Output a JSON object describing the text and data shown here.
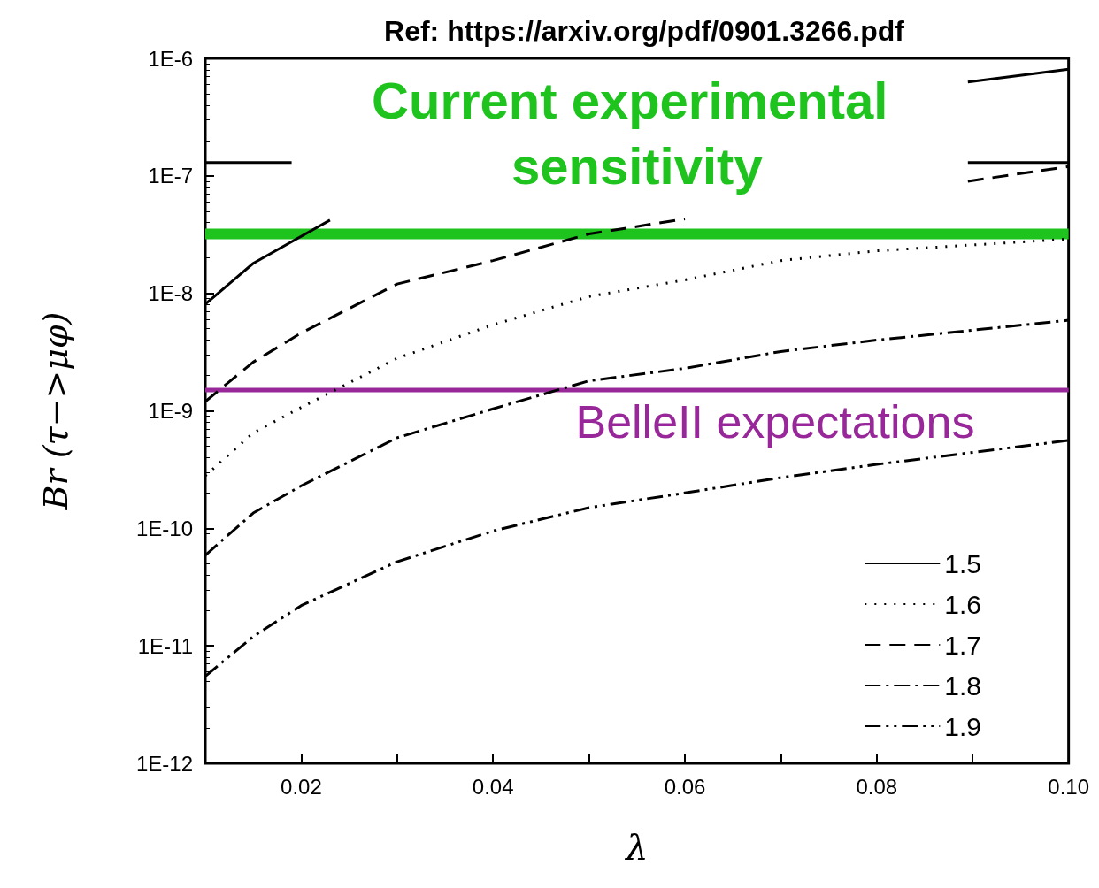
{
  "chart_data": {
    "type": "line",
    "title": "Ref: https://arxiv.org/pdf/0901.3266.pdf",
    "xlabel": "λ",
    "ylabel": "Br (τ−>μφ)",
    "x": [
      0.01,
      0.015,
      0.02,
      0.03,
      0.04,
      0.05,
      0.06,
      0.07,
      0.08,
      0.1
    ],
    "series": [
      {
        "name": "1.5",
        "color": "#000000",
        "line_style": "solid",
        "x": [
          0.01,
          0.015,
          0.023,
          0.05,
          0.0895,
          0.1
        ],
        "values": [
          8.1e-09,
          1.8e-08,
          4.2e-08,
          null,
          6.3e-07,
          8.1e-07
        ]
      },
      {
        "name": "1.6",
        "color": "#000000",
        "line_style": "dotted",
        "values": [
          2.8e-10,
          6.5e-10,
          1.07e-09,
          2.8e-09,
          5.4e-09,
          9.4e-09,
          1.3e-08,
          1.9e-08,
          2.3e-08,
          2.9e-08
        ]
      },
      {
        "name": "1.7",
        "color": "#000000",
        "line_style": "dashed",
        "x": [
          0.01,
          0.015,
          0.02,
          0.03,
          0.04,
          0.05,
          0.06,
          0.07,
          0.0895,
          0.1
        ],
        "values": [
          1.2e-09,
          2.6e-09,
          4.6e-09,
          1.2e-08,
          1.9e-08,
          3.2e-08,
          4.3e-08,
          null,
          9e-08,
          1.2e-07
        ]
      },
      {
        "name": "1.8",
        "color": "#000000",
        "line_style": "dashdot",
        "values": [
          5.9e-11,
          1.35e-10,
          2.3e-10,
          5.9e-10,
          1.04e-09,
          1.8e-09,
          2.3e-09,
          3.2e-09,
          4e-09,
          5.9e-09
        ]
      },
      {
        "name": "1.9",
        "color": "#000000",
        "line_style": "dashdotdot",
        "values": [
          5.5e-12,
          1.2e-11,
          2.2e-11,
          5.2e-11,
          9.5e-11,
          1.5e-10,
          2e-10,
          2.7e-10,
          3.5e-10,
          5.6e-10
        ]
      },
      {
        "color": "#000000",
        "line_style": "solid",
        "x": [
          0.01,
          0.019,
          0.05,
          0.0895,
          0.1
        ],
        "values": [
          1.3e-07,
          1.3e-07,
          null,
          1.3e-07,
          1.3e-07
        ]
      }
    ],
    "ref_lines": [
      {
        "axis": "y",
        "value": 3.2e-08,
        "label": "Current experimental sensitivity",
        "color": "#1ec31e"
      },
      {
        "axis": "y",
        "value": 1.5e-09,
        "label": "BelleII expectations",
        "color": "#98289a"
      }
    ],
    "log": "y",
    "xlim": [
      0.01,
      0.1
    ],
    "ylim": [
      1e-12,
      1e-06
    ],
    "xticks": [
      {
        "value": 0.01,
        "label": null
      },
      0.02,
      {
        "value": 0.03,
        "label": null
      },
      0.04,
      {
        "value": 0.05,
        "label": null
      },
      0.06,
      {
        "value": 0.07,
        "label": null
      },
      0.08,
      {
        "value": 0.09,
        "label": null
      },
      {
        "value": 0.1,
        "label": "0.10"
      }
    ],
    "yticks": [
      {
        "value": 1e-12,
        "label": "1E-12"
      },
      {
        "value": 1e-11,
        "label": "1E-11"
      },
      {
        "value": 1e-10,
        "label": "1E-10"
      },
      {
        "value": 1e-09,
        "label": "1E-9"
      },
      {
        "value": 1e-08,
        "label": "1E-8"
      },
      {
        "value": 1e-07,
        "label": "1E-7"
      },
      {
        "value": 1e-06,
        "label": "1E-6"
      }
    ],
    "grid": false,
    "legend": "bottom right",
    "marker": "none"
  }
}
